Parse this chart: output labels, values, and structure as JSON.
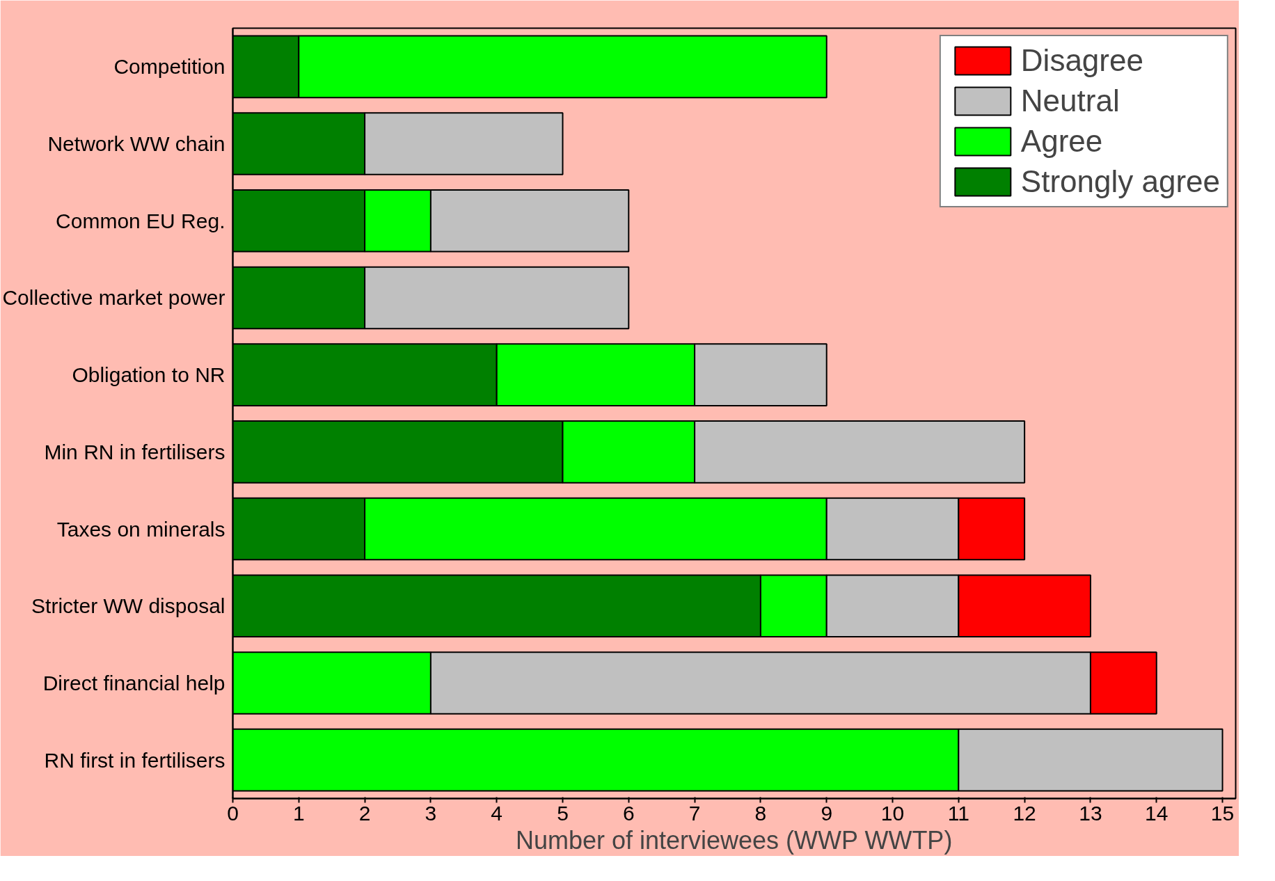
{
  "chart_data": {
    "type": "bar",
    "orientation": "horizontal",
    "stacked": true,
    "xlabel": "Number of interviewees (WWP WWTP)",
    "categories": [
      "Competition",
      "Network WW chain",
      "Common EU Reg.",
      "Collective market power",
      "Obligation to NR",
      "Min RN in fertilisers",
      "Taxes on minerals",
      "Stricter WW disposal",
      "Direct financial help",
      "RN first in fertilisers"
    ],
    "series": [
      {
        "name": "Strongly agree",
        "color": "#008000",
        "values": [
          1,
          2,
          2,
          2,
          4,
          5,
          2,
          8,
          0,
          0
        ]
      },
      {
        "name": "Agree",
        "color": "#00ff00",
        "values": [
          8,
          0,
          1,
          0,
          3,
          2,
          7,
          1,
          3,
          11
        ]
      },
      {
        "name": "Neutral",
        "color": "#c0c0c0",
        "values": [
          0,
          3,
          3,
          4,
          2,
          5,
          2,
          2,
          10,
          4
        ]
      },
      {
        "name": "Disagree",
        "color": "#ff0000",
        "values": [
          0,
          0,
          0,
          0,
          0,
          0,
          1,
          2,
          1,
          0
        ]
      }
    ],
    "xlim": [
      0,
      15.2
    ],
    "xticks": [
      0,
      1,
      2,
      3,
      4,
      5,
      6,
      7,
      8,
      9,
      10,
      11,
      12,
      13,
      14,
      15
    ],
    "grid": false,
    "legend": "top right"
  }
}
